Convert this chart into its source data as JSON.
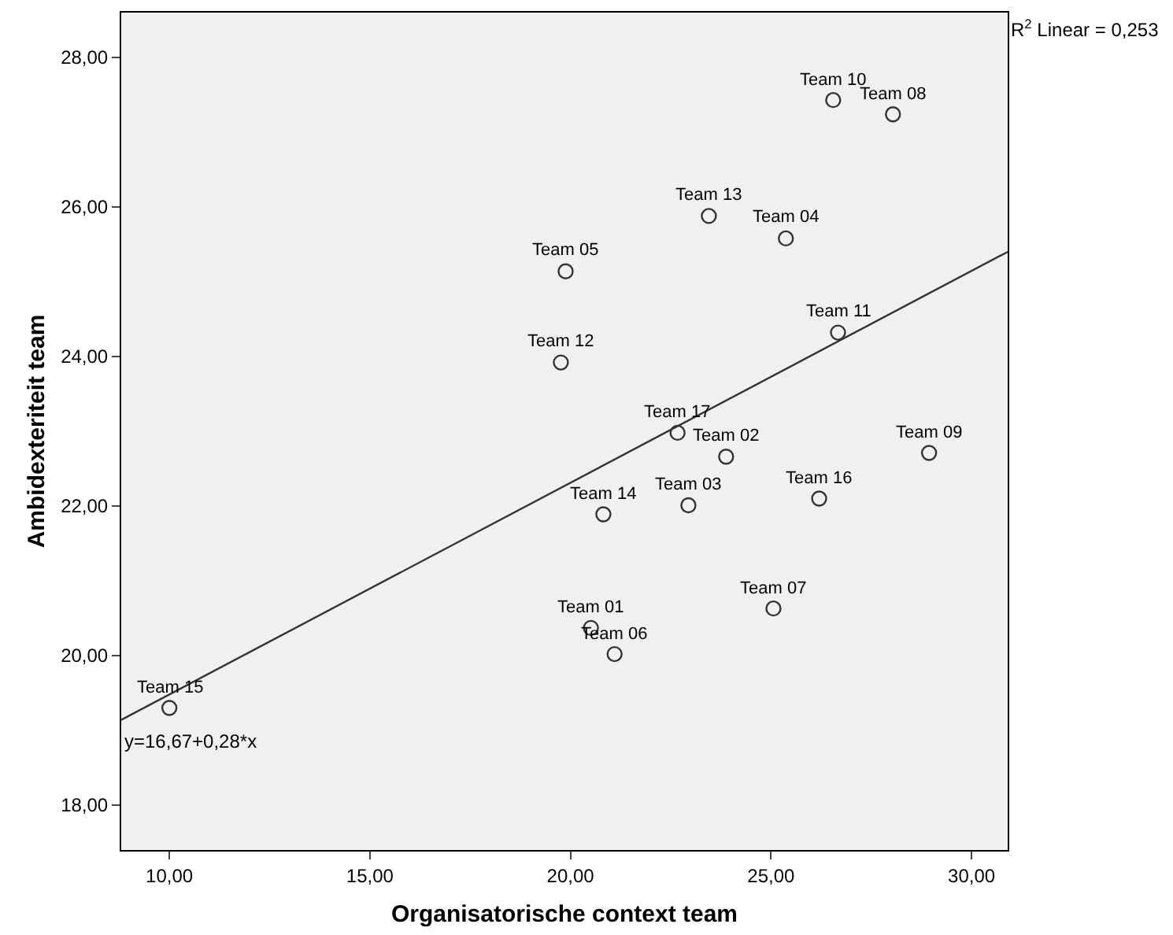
{
  "chart_data": {
    "type": "scatter",
    "xlabel": "Organisatorische context team",
    "ylabel": "Ambidexteriteit team",
    "xlim": [
      8.8,
      30.9
    ],
    "ylim": [
      17.4,
      28.6
    ],
    "xticks": [
      {
        "value": 10,
        "label": "10,00"
      },
      {
        "value": 15,
        "label": "15,00"
      },
      {
        "value": 20,
        "label": "20,00"
      },
      {
        "value": 25,
        "label": "25,00"
      },
      {
        "value": 30,
        "label": "30,00"
      }
    ],
    "yticks": [
      {
        "value": 18,
        "label": "18,00"
      },
      {
        "value": 20,
        "label": "20,00"
      },
      {
        "value": 22,
        "label": "22,00"
      },
      {
        "value": 24,
        "label": "24,00"
      },
      {
        "value": 26,
        "label": "26,00"
      },
      {
        "value": 28,
        "label": "28,00"
      }
    ],
    "grid": false,
    "marker": "circle",
    "series": [
      {
        "color": "#333333",
        "x": [
          26.55,
          28.04,
          23.45,
          25.37,
          19.88,
          26.67,
          19.76,
          22.67,
          23.88,
          28.94,
          26.2,
          22.94,
          20.82,
          25.06,
          20.51,
          21.1,
          10.0
        ],
        "values": [
          27.43,
          27.24,
          25.88,
          25.58,
          25.14,
          24.32,
          23.92,
          22.98,
          22.66,
          22.71,
          22.1,
          22.01,
          21.89,
          20.63,
          20.37,
          20.02,
          19.3
        ]
      },
      {
        "type": "line",
        "color": "#333333",
        "marker": "none",
        "x": [
          8.8,
          30.9
        ],
        "values": [
          19.14,
          25.4
        ]
      }
    ],
    "annotations": [
      {
        "text": "Team 10",
        "x": 26.55,
        "y": 27.43
      },
      {
        "text": "Team 08",
        "x": 28.04,
        "y": 27.24
      },
      {
        "text": "Team 13",
        "x": 23.45,
        "y": 25.88
      },
      {
        "text": "Team 04",
        "x": 25.37,
        "y": 25.58
      },
      {
        "text": "Team 05",
        "x": 19.88,
        "y": 25.14
      },
      {
        "text": "Team 11",
        "x": 26.67,
        "y": 24.32
      },
      {
        "text": "Team 12",
        "x": 19.76,
        "y": 23.92
      },
      {
        "text": "Team 17",
        "x": 22.67,
        "y": 22.98
      },
      {
        "text": "Team 02",
        "x": 23.88,
        "y": 22.66
      },
      {
        "text": "Team 09",
        "x": 28.94,
        "y": 22.71
      },
      {
        "text": "Team 16",
        "x": 26.2,
        "y": 22.1
      },
      {
        "text": "Team 03",
        "x": 22.94,
        "y": 22.01
      },
      {
        "text": "Team 14",
        "x": 20.82,
        "y": 21.89
      },
      {
        "text": "Team 07",
        "x": 25.06,
        "y": 20.63
      },
      {
        "text": "Team 01",
        "x": 20.51,
        "y": 20.37
      },
      {
        "text": "Team 06",
        "x": 21.1,
        "y": 20.02
      },
      {
        "text": "Team 15",
        "x": 10.0,
        "y": 19.3
      },
      "R$^{2}$ Linear = 0,253",
      "y=16,67+0,28*x"
    ]
  }
}
